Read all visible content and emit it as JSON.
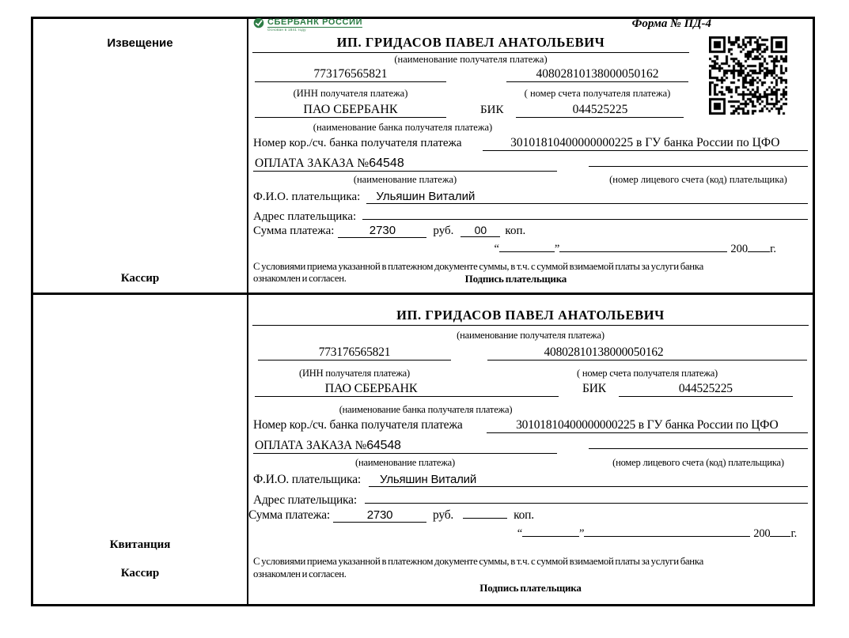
{
  "document": {
    "form_label": "Форма № ПД-4",
    "logo": {
      "brand": "СБЕРБАНК РОССИИ",
      "tagline": "Основан в 1841 году",
      "color": "#2e7d46"
    },
    "stub": {
      "notice": "Извещение",
      "receipt": "Квитанция",
      "cashier": "Кассир"
    },
    "payee": {
      "name": "ИП. ГРИДАСОВ ПАВЕЛ АНАТОЛЬЕВИЧ",
      "name_caption": "(наименование получателя платежа)",
      "inn": "773176565821",
      "inn_caption": "(ИНН получателя платежа)",
      "account": "40802810138000050162",
      "account_caption": "( номер счета получателя платежа)",
      "bank": "ПАО СБЕРБАНК",
      "bank_caption": "(наименование банка получателя платежа)",
      "bik_label": "БИК",
      "bik": "044525225",
      "corr_label": "Номер кор./сч. банка получателя платежа",
      "corr_value": "30101810400000000225 в ГУ банка России по ЦФО"
    },
    "payment": {
      "purpose_prefix": "ОПЛАТА ЗАКАЗА №",
      "order_number": "64548",
      "purpose_caption": "(наименование платежа)",
      "personal_account_caption": "(номер лицевого счета (код) плательщика)"
    },
    "payer": {
      "fio_label": "Ф.И.О. плательщика:",
      "fio": "Ульяшин Виталий",
      "address_label": "Адрес плательщика:",
      "address": "",
      "sum_label": "Сумма платежа:",
      "rub_label": "руб.",
      "kop_label": "коп.",
      "amount_rub": "2730",
      "amount_kop_notice": "00",
      "amount_kop_receipt": ""
    },
    "date_line": {
      "open_quote": "“",
      "close_quote": "”",
      "century": "200",
      "year_suffix": "г."
    },
    "agreement": {
      "line1": "С условиями приема указанной в платежном документе суммы, в т.ч. с суммой взимаемой платы за услуги банка",
      "line2": "ознакомлен и согласен.",
      "signature_label": "Подпись плательщика"
    }
  }
}
